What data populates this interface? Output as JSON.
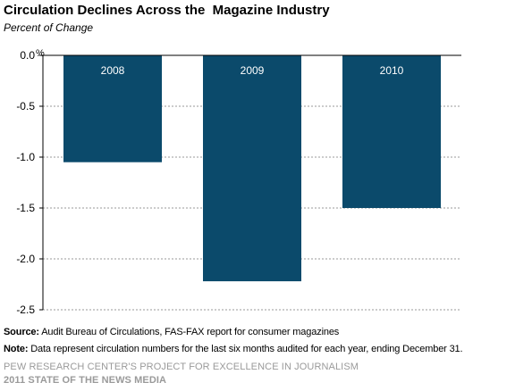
{
  "title": "Circulation Declines Across the  Magazine Industry",
  "subtitle": "Percent of Change",
  "chart_data": {
    "type": "bar",
    "categories": [
      "2008",
      "2009",
      "2010"
    ],
    "values": [
      -1.05,
      -2.22,
      -1.5
    ],
    "ylim": [
      -2.5,
      0
    ],
    "yticks": [
      "0.0",
      "-0.5",
      "-1.0",
      "-1.5",
      "-2.0",
      "-2.5"
    ],
    "ytick_values": [
      0,
      -0.5,
      -1.0,
      -1.5,
      -2.0,
      -2.5
    ],
    "yunit": "%",
    "grid": true,
    "bar_color": "#0b4a6b",
    "category_label_color": "#ffffff"
  },
  "footer": {
    "source_label": "Source:",
    "source_text": " Audit Bureau of Circulations, FAS-FAX report for consumer magazines",
    "note_label": "Note:",
    "note_text": " Data represent circulation numbers for the last six months audited for each year, ending December 31.",
    "org_line": "PEW RESEARCH CENTER'S PROJECT FOR EXCELLENCE IN JOURNALISM",
    "report_line": "2011 STATE OF THE NEWS MEDIA"
  }
}
